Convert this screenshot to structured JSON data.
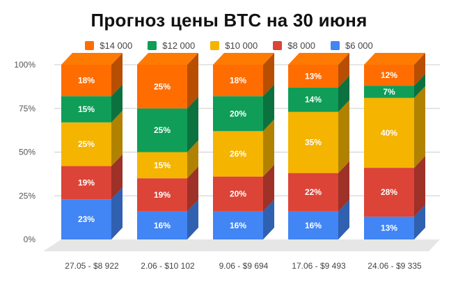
{
  "chart_data": {
    "type": "bar",
    "stacked": true,
    "three_d": true,
    "title": "Прогноз цены BTC на 30 июня",
    "xlabel": "",
    "ylabel": "",
    "ylim": [
      0,
      100
    ],
    "y_ticks": [
      "0%",
      "25%",
      "50%",
      "75%",
      "100%"
    ],
    "grid": true,
    "legend_position": "top",
    "categories": [
      "27.05 - $8 922",
      "2.06 - $10 102",
      "9.06 - $9 694",
      "17.06 - $9 493",
      "24.06 - $9 335"
    ],
    "series": [
      {
        "name": "$6 000",
        "color": "#4285f4",
        "values": [
          23,
          16,
          16,
          16,
          13
        ]
      },
      {
        "name": "$8 000",
        "color": "#db4437",
        "values": [
          19,
          19,
          20,
          22,
          28
        ]
      },
      {
        "name": "$10 000",
        "color": "#f4b400",
        "values": [
          25,
          15,
          26,
          35,
          40
        ]
      },
      {
        "name": "$12 000",
        "color": "#0f9d58",
        "values": [
          15,
          25,
          20,
          14,
          7
        ]
      },
      {
        "name": "$14 000",
        "color": "#ff6d01",
        "values": [
          18,
          25,
          18,
          13,
          12
        ]
      }
    ],
    "legend_order": [
      "$14 000",
      "$12 000",
      "$10 000",
      "$8 000",
      "$6 000"
    ]
  }
}
